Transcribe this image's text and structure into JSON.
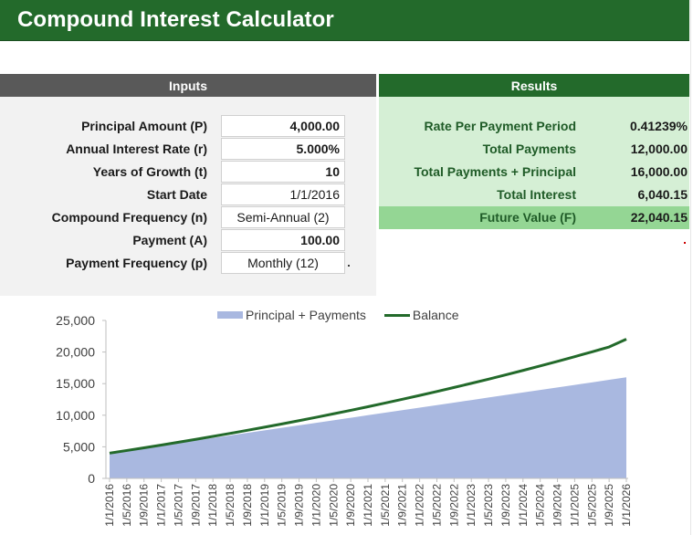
{
  "app": {
    "title": "Compound Interest Calculator"
  },
  "inputs": {
    "header": "Inputs",
    "rows": [
      {
        "label": "Principal Amount (P)",
        "value": "4,000.00"
      },
      {
        "label": "Annual Interest Rate (r)",
        "value": "5.000%"
      },
      {
        "label": "Years of Growth (t)",
        "value": "10"
      },
      {
        "label": "Start Date",
        "value": "1/1/2016"
      },
      {
        "label": "Compound Frequency (n)",
        "value": "Semi-Annual (2)"
      },
      {
        "label": "Payment (A)",
        "value": "100.00"
      },
      {
        "label": "Payment Frequency (p)",
        "value": "Monthly (12)"
      }
    ]
  },
  "results": {
    "header": "Results",
    "rows": [
      {
        "label": "Rate Per Payment Period",
        "value": "0.41239%"
      },
      {
        "label": "Total Payments",
        "value": "12,000.00"
      },
      {
        "label": "Total Payments + Principal",
        "value": "16,000.00"
      },
      {
        "label": "Total Interest",
        "value": "6,040.15"
      },
      {
        "label": "Future Value (F)",
        "value": "22,040.15"
      }
    ]
  },
  "colors": {
    "brand_green": "#236a2b",
    "header_gray": "#595959",
    "results_bg": "#d5efd5",
    "highlight_bg": "#94d694",
    "area_fill": "#a9b8e0"
  },
  "chart_data": {
    "type": "area",
    "legend": [
      "Principal + Payments",
      "Balance"
    ],
    "legend_position": "top",
    "y_ticks": [
      "0",
      "5,000",
      "10,000",
      "15,000",
      "20,000",
      "25,000"
    ],
    "ylim": [
      0,
      25000
    ],
    "x_tick_labels": [
      "1/1/2016",
      "1/5/2016",
      "1/9/2016",
      "1/1/2017",
      "1/5/2017",
      "1/9/2017",
      "1/1/2018",
      "1/5/2018",
      "1/9/2018",
      "1/1/2019",
      "1/5/2019",
      "1/9/2019",
      "1/1/2020",
      "1/5/2020",
      "1/9/2020",
      "1/1/2021",
      "1/5/2021",
      "1/9/2021",
      "1/1/2022",
      "1/5/2022",
      "1/9/2022",
      "1/1/2023",
      "1/5/2023",
      "1/9/2023",
      "1/1/2024",
      "1/5/2024",
      "1/9/2024",
      "1/1/2025",
      "1/5/2025",
      "1/9/2025",
      "1/1/2026"
    ],
    "series": [
      {
        "name": "Principal + Payments",
        "values": [
          4000,
          4400,
          4800,
          5200,
          5600,
          6000,
          6400,
          6800,
          7200,
          7600,
          8000,
          8400,
          8800,
          9200,
          9600,
          10000,
          10400,
          10800,
          11200,
          11600,
          12000,
          12400,
          12800,
          13200,
          13600,
          14000,
          14400,
          14800,
          15200,
          15600,
          16000
        ]
      },
      {
        "name": "Balance",
        "values": [
          4000,
          4417,
          4843,
          5279,
          5725,
          6181,
          6647,
          7124,
          7612,
          8110,
          8620,
          9142,
          9675,
          10220,
          10777,
          11347,
          11929,
          12525,
          13134,
          13757,
          14394,
          15045,
          15711,
          16392,
          17088,
          17799,
          18526,
          19270,
          20030,
          20807,
          22040
        ]
      }
    ],
    "grid": false
  }
}
